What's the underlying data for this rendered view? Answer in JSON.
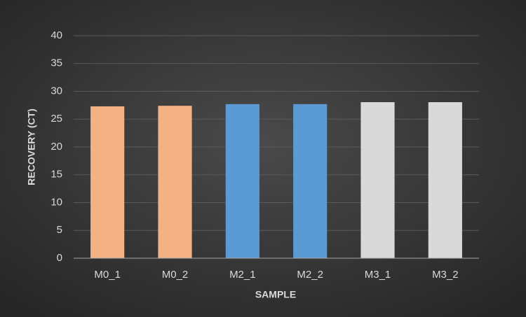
{
  "chart_data": {
    "type": "bar",
    "x_label": "SAMPLE",
    "y_label": "RECOVERY (CT)",
    "categories": [
      "M0_1",
      "M0_2",
      "M2_1",
      "M2_2",
      "M3_1",
      "M3_2"
    ],
    "values": [
      27.3,
      27.4,
      27.7,
      27.7,
      28.05,
      28.05
    ],
    "colors": [
      "#f4b183",
      "#f4b183",
      "#5b9bd5",
      "#5b9bd5",
      "#d9d9d9",
      "#d9d9d9"
    ],
    "ylim": [
      0,
      40
    ],
    "yticks": [
      0,
      5,
      10,
      15,
      20,
      25,
      30,
      35,
      40
    ],
    "grid": true
  }
}
